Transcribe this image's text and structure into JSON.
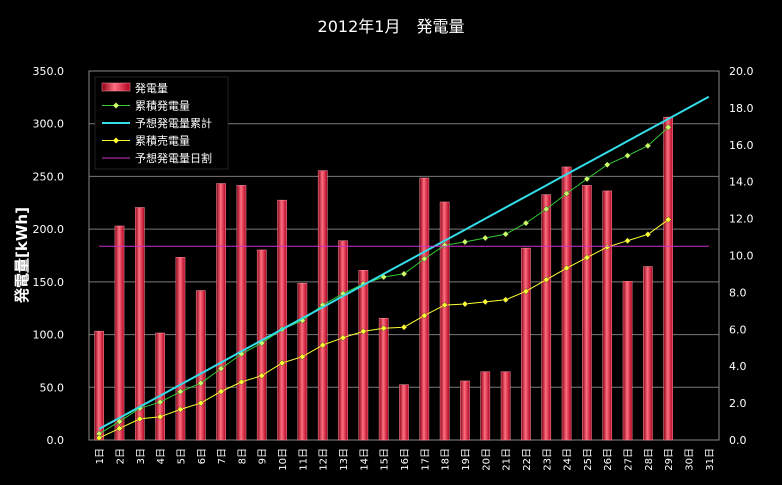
{
  "chart_data": {
    "type": "bar",
    "title": "2012年1月　発電量",
    "ylabel": "発電量[kWh]",
    "ylim_left": [
      0,
      350
    ],
    "ylim_right": [
      0,
      20
    ],
    "left_ticks": [
      "0.0",
      "50.0",
      "100.0",
      "150.0",
      "200.0",
      "250.0",
      "300.0",
      "350.0"
    ],
    "right_ticks": [
      "0.0",
      "2.0",
      "4.0",
      "6.0",
      "8.0",
      "10.0",
      "12.0",
      "14.0",
      "16.0",
      "18.0",
      "20.0"
    ],
    "categories": [
      "1日",
      "2日",
      "3日",
      "4日",
      "5日",
      "6日",
      "7日",
      "8日",
      "9日",
      "10日",
      "11日",
      "12日",
      "13日",
      "14日",
      "15日",
      "16日",
      "17日",
      "18日",
      "19日",
      "20日",
      "21日",
      "22日",
      "23日",
      "24日",
      "25日",
      "26日",
      "27日",
      "28日",
      "29日",
      "30日",
      "31日"
    ],
    "series": [
      {
        "name": "発電量",
        "kind": "bar",
        "axis": "right",
        "color": "#ff3b50",
        "values": [
          5.9,
          11.6,
          12.6,
          5.8,
          9.9,
          8.1,
          13.9,
          13.8,
          10.3,
          13.0,
          8.5,
          14.6,
          10.8,
          9.2,
          6.6,
          3.0,
          14.2,
          12.9,
          3.2,
          3.7,
          3.7,
          10.4,
          13.3,
          14.8,
          13.8,
          13.5,
          8.6,
          9.4,
          17.5,
          null,
          null
        ]
      },
      {
        "name": "累積発電量",
        "kind": "line",
        "axis": "left",
        "color": "#33cc33",
        "marker": "#ccff66",
        "values": [
          5.9,
          17.5,
          30.1,
          35.9,
          45.8,
          53.9,
          67.8,
          81.6,
          91.9,
          104.9,
          113.4,
          128.0,
          138.8,
          148.0,
          154.6,
          157.6,
          171.8,
          184.7,
          187.9,
          191.6,
          195.3,
          205.7,
          219.0,
          233.8,
          247.6,
          261.1,
          269.7,
          279.1,
          296.6,
          null,
          null
        ]
      },
      {
        "name": "予想発電量累計",
        "kind": "line",
        "axis": "left",
        "color": "#33dde8",
        "values": [
          10.5,
          21.0,
          31.5,
          42.0,
          52.5,
          63.0,
          73.5,
          84.0,
          94.5,
          105.0,
          115.5,
          126.0,
          136.5,
          147.0,
          157.5,
          168.0,
          178.5,
          189.0,
          199.5,
          210.0,
          220.5,
          231.0,
          241.5,
          252.0,
          262.5,
          273.0,
          283.5,
          294.0,
          304.5,
          315.0,
          325.5
        ]
      },
      {
        "name": "累積売電量",
        "kind": "line",
        "axis": "left",
        "color": "#ffff33",
        "marker": "#ffff33",
        "values": [
          2.0,
          11.0,
          20.0,
          22.0,
          29.0,
          35.0,
          46.0,
          55.0,
          61.0,
          73.0,
          79.0,
          90.0,
          97.0,
          103.0,
          106.0,
          107.0,
          118.0,
          128.0,
          129.0,
          131.0,
          133.0,
          141.0,
          152.0,
          163.0,
          173.0,
          183.0,
          189.0,
          195.0,
          209.0,
          null,
          null
        ]
      },
      {
        "name": "予想発電量日割",
        "kind": "line",
        "axis": "right",
        "color": "#cc33cc",
        "values": [
          10.5,
          10.5,
          10.5,
          10.5,
          10.5,
          10.5,
          10.5,
          10.5,
          10.5,
          10.5,
          10.5,
          10.5,
          10.5,
          10.5,
          10.5,
          10.5,
          10.5,
          10.5,
          10.5,
          10.5,
          10.5,
          10.5,
          10.5,
          10.5,
          10.5,
          10.5,
          10.5,
          10.5,
          10.5,
          10.5,
          10.5
        ]
      }
    ],
    "legend_position": "top-left"
  }
}
